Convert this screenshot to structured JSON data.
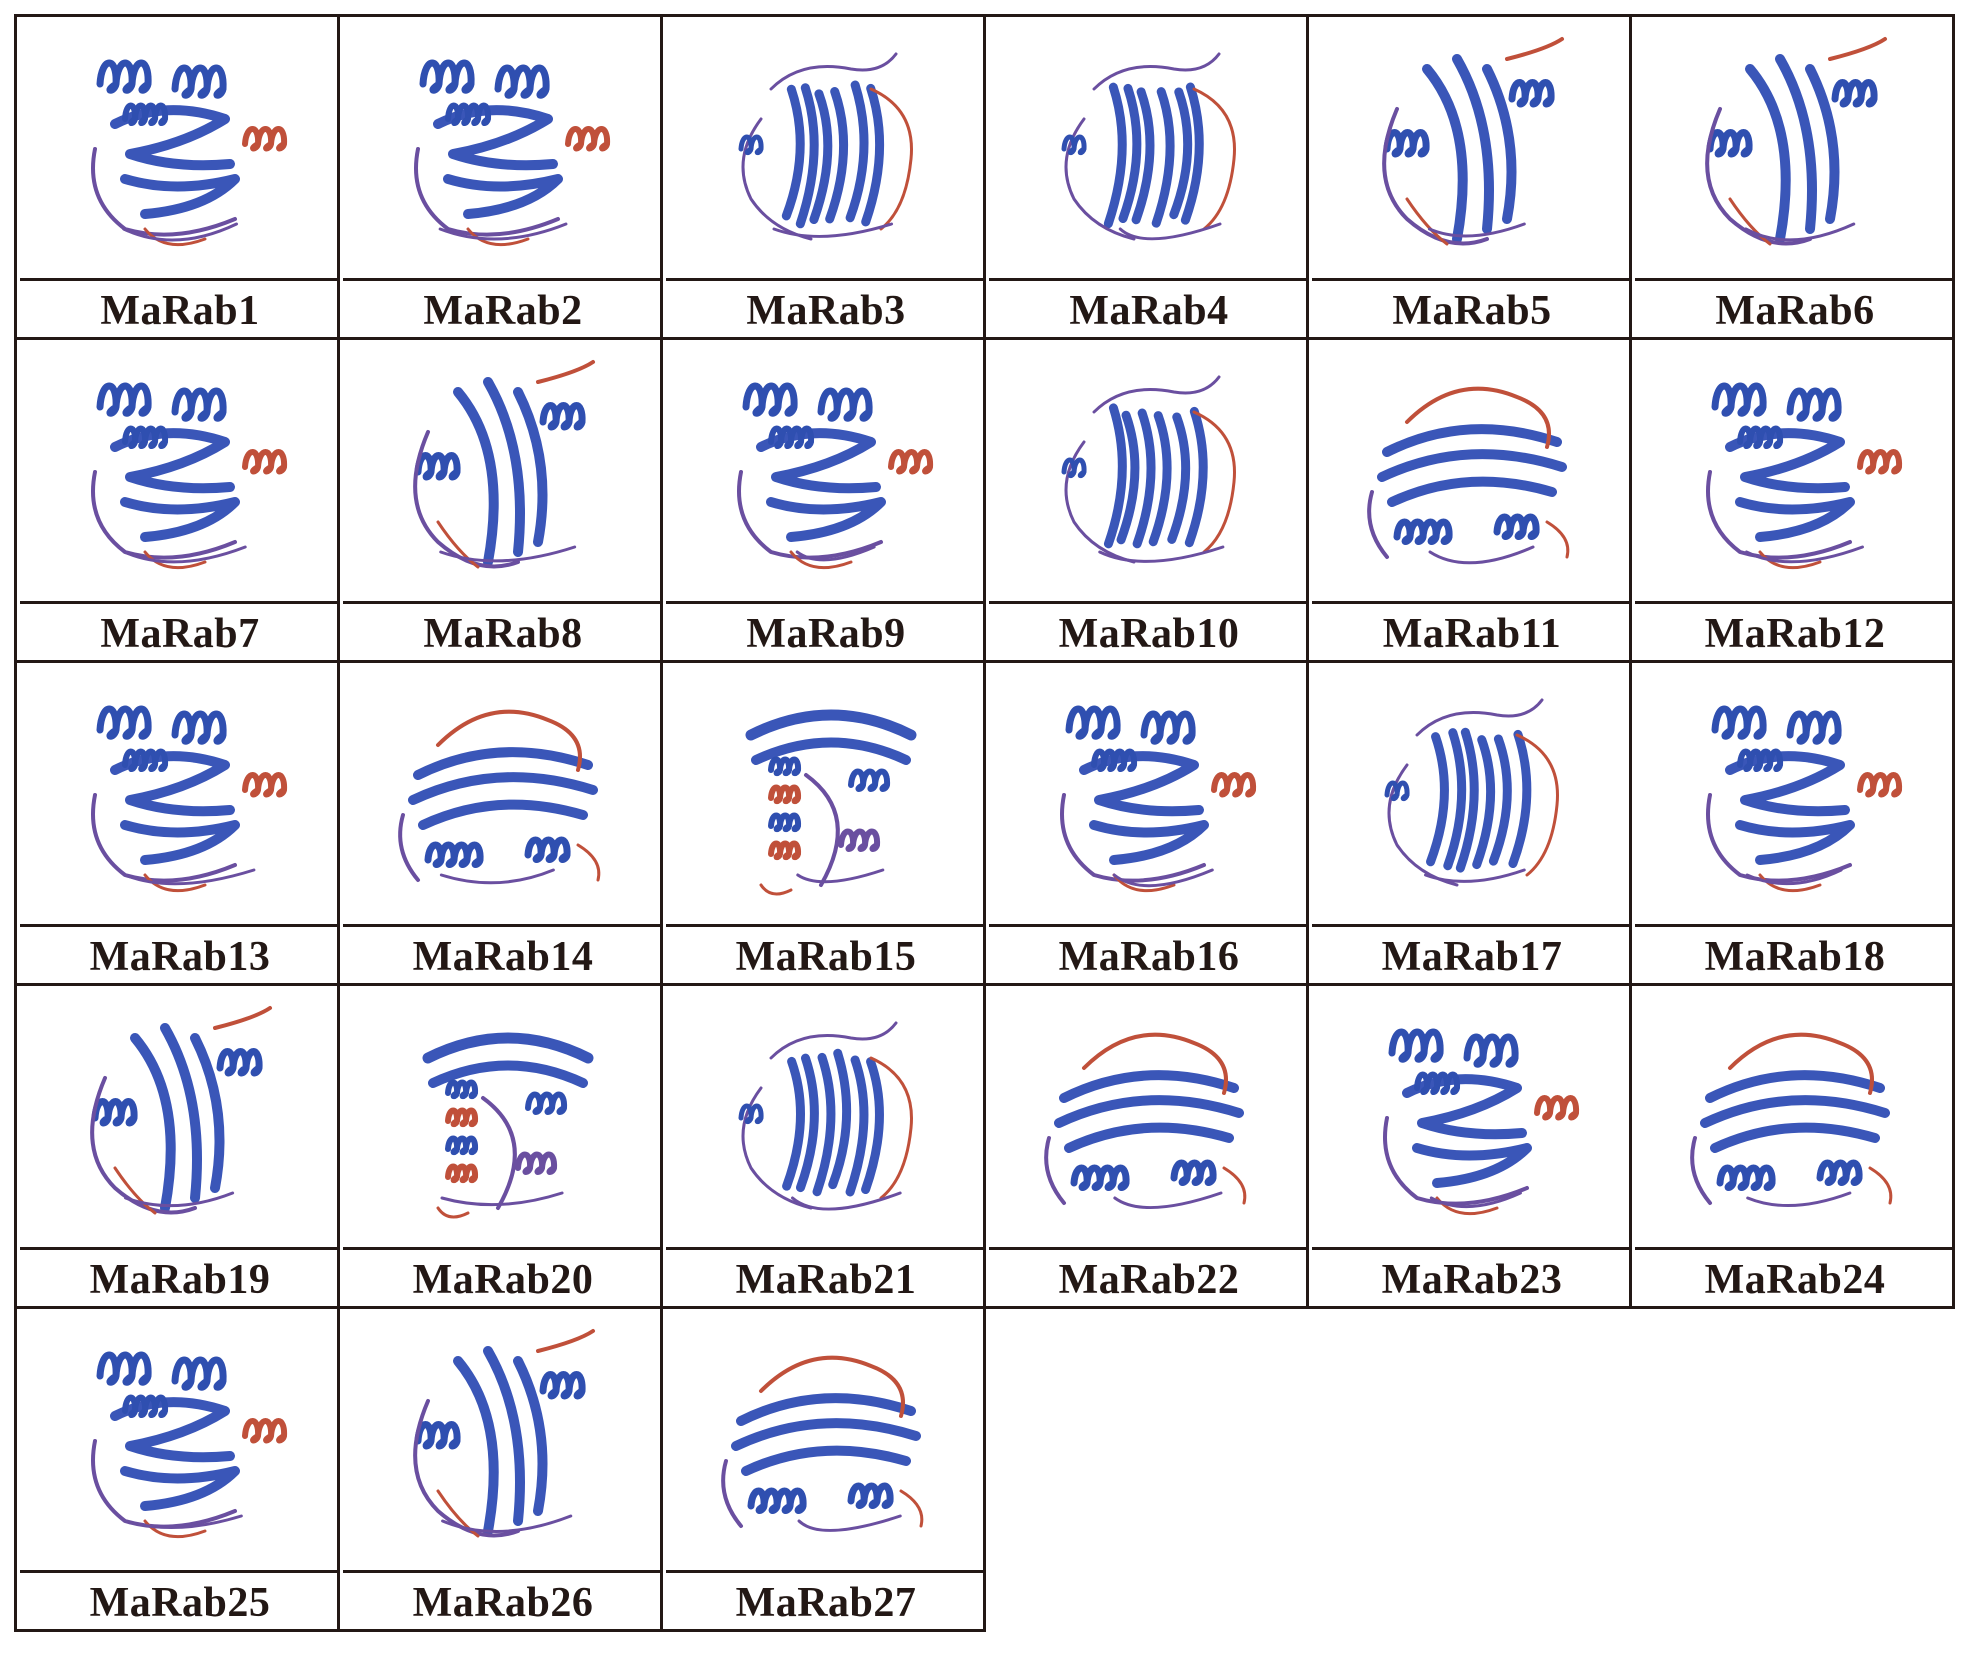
{
  "colors": {
    "border": "#231815",
    "helix": "#2f4fb0",
    "sheet": "#3a56b8",
    "loop": "#6a4fa0",
    "accent": "#c0503a"
  },
  "proteins": [
    {
      "label": "MaRab1",
      "fold": "A"
    },
    {
      "label": "MaRab2",
      "fold": "A"
    },
    {
      "label": "MaRab3",
      "fold": "B"
    },
    {
      "label": "MaRab4",
      "fold": "B"
    },
    {
      "label": "MaRab5",
      "fold": "C"
    },
    {
      "label": "MaRab6",
      "fold": "C"
    },
    {
      "label": "MaRab7",
      "fold": "A"
    },
    {
      "label": "MaRab8",
      "fold": "C"
    },
    {
      "label": "MaRab9",
      "fold": "A"
    },
    {
      "label": "MaRab10",
      "fold": "B"
    },
    {
      "label": "MaRab11",
      "fold": "D"
    },
    {
      "label": "MaRab12",
      "fold": "A"
    },
    {
      "label": "MaRab13",
      "fold": "A"
    },
    {
      "label": "MaRab14",
      "fold": "D"
    },
    {
      "label": "MaRab15",
      "fold": "E"
    },
    {
      "label": "MaRab16",
      "fold": "A"
    },
    {
      "label": "MaRab17",
      "fold": "B"
    },
    {
      "label": "MaRab18",
      "fold": "A"
    },
    {
      "label": "MaRab19",
      "fold": "C"
    },
    {
      "label": "MaRab20",
      "fold": "E"
    },
    {
      "label": "MaRab21",
      "fold": "B"
    },
    {
      "label": "MaRab22",
      "fold": "D"
    },
    {
      "label": "MaRab23",
      "fold": "A"
    },
    {
      "label": "MaRab24",
      "fold": "D"
    },
    {
      "label": "MaRab25",
      "fold": "A"
    },
    {
      "label": "MaRab26",
      "fold": "C"
    },
    {
      "label": "MaRab27",
      "fold": "D"
    }
  ]
}
